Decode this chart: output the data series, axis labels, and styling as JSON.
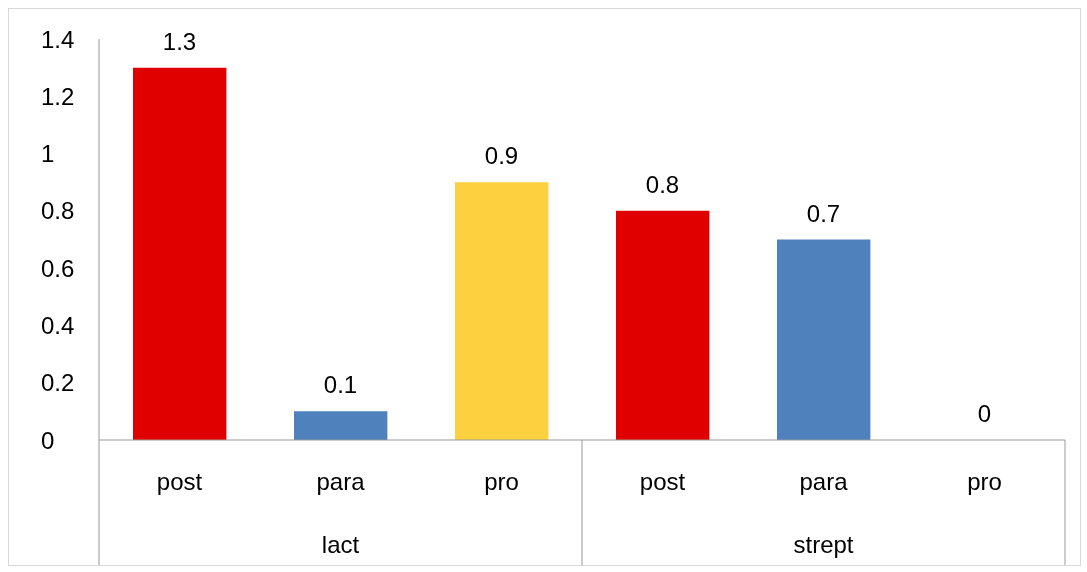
{
  "chart_data": {
    "type": "bar",
    "categories": [
      "post",
      "para",
      "pro",
      "post",
      "para",
      "pro"
    ],
    "values": [
      1.3,
      0.1,
      0.9,
      0.8,
      0.7,
      0
    ],
    "colors": [
      "#e00000",
      "#4f81bd",
      "#fcd03f",
      "#e00000",
      "#4f81bd",
      "#4f81bd"
    ],
    "ylim": [
      0,
      1.4
    ],
    "yticks": [
      0,
      0.2,
      0.4,
      0.6,
      0.8,
      1,
      1.2,
      1.4
    ],
    "annotations": [
      "lact",
      "strept"
    ],
    "data_labels": true,
    "grid": false,
    "legend": false
  }
}
